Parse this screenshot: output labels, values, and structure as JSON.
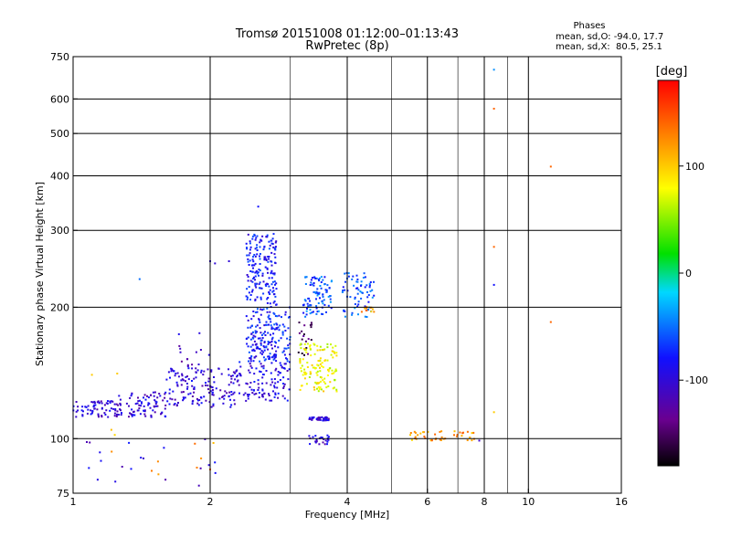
{
  "chart_data": {
    "type": "scatter",
    "title": "Tromsø 20151008 01:12:00–01:13:43",
    "subtitle": "RwPretec (8p)",
    "xlabel": "Frequency [MHz]",
    "ylabel": "Stationary phase Virtual Height [km]",
    "x_scale": "log",
    "y_scale": "log",
    "xlim": [
      1,
      16
    ],
    "ylim": [
      75,
      750
    ],
    "x_ticks": [
      1,
      2,
      4,
      6,
      8,
      10,
      16
    ],
    "y_ticks": [
      75,
      100,
      200,
      300,
      400,
      500,
      600,
      750
    ],
    "grid": true,
    "annotation": {
      "heading": "Phases",
      "line1": "mean, sd,O: -94.0, 17.7",
      "line2": "mean, sd,X:  80.5, 25.1"
    },
    "colorbar": {
      "label": "[deg]",
      "range": [
        -180,
        180
      ],
      "ticks": [
        100,
        0,
        -100
      ],
      "colors": [
        "#000000",
        "#6a0090",
        "#1010ff",
        "#00d8ff",
        "#00e000",
        "#ffff00",
        "#ff8000",
        "#ff0000"
      ]
    },
    "clusters": [
      {
        "fmin": 1.0,
        "fmax": 1.25,
        "hmin": 112,
        "hmax": 122,
        "phase": -100,
        "n": 70
      },
      {
        "fmin": 1.25,
        "fmax": 1.6,
        "hmin": 112,
        "hmax": 128,
        "phase": -100,
        "n": 90
      },
      {
        "fmin": 1.6,
        "fmax": 2.3,
        "hmin": 118,
        "hmax": 145,
        "phase": -100,
        "n": 140
      },
      {
        "fmin": 1.7,
        "fmax": 2.0,
        "hmin": 130,
        "hmax": 175,
        "phase": -110,
        "n": 25
      },
      {
        "fmin": 2.3,
        "fmax": 3.0,
        "hmin": 122,
        "hmax": 150,
        "phase": -95,
        "n": 110
      },
      {
        "fmin": 2.4,
        "fmax": 2.8,
        "hmin": 150,
        "hmax": 295,
        "phase": -80,
        "n": 320
      },
      {
        "fmin": 2.75,
        "fmax": 3.0,
        "hmin": 150,
        "hmax": 200,
        "phase": -75,
        "n": 50
      },
      {
        "fmin": 3.1,
        "fmax": 3.35,
        "hmin": 155,
        "hmax": 185,
        "phase": -150,
        "n": 20
      },
      {
        "fmin": 3.15,
        "fmax": 3.8,
        "hmin": 128,
        "hmax": 165,
        "phase": 80,
        "n": 130
      },
      {
        "fmin": 3.2,
        "fmax": 3.7,
        "hmin": 190,
        "hmax": 235,
        "phase": -60,
        "n": 95
      },
      {
        "fmin": 3.3,
        "fmax": 3.65,
        "hmin": 110,
        "hmax": 112,
        "phase": -100,
        "n": 40
      },
      {
        "fmin": 3.3,
        "fmax": 3.7,
        "hmin": 97,
        "hmax": 102,
        "phase": -100,
        "n": 25
      },
      {
        "fmin": 3.9,
        "fmax": 4.6,
        "hmin": 190,
        "hmax": 240,
        "phase": -60,
        "n": 70
      },
      {
        "fmin": 4.3,
        "fmax": 4.6,
        "hmin": 195,
        "hmax": 202,
        "phase": 120,
        "n": 12
      },
      {
        "fmin": 5.5,
        "fmax": 7.6,
        "hmin": 99,
        "hmax": 104,
        "phase": 120,
        "n": 45
      },
      {
        "fmin": 1.0,
        "fmax": 2.2,
        "hmin": 78,
        "hmax": 100,
        "phase": -100,
        "n": 20
      },
      {
        "fmin": 1.2,
        "fmax": 2.1,
        "hmin": 80,
        "hmax": 105,
        "phase": 120,
        "n": 10
      }
    ],
    "points": [
      {
        "x": 8.4,
        "y": 700,
        "phase": -40
      },
      {
        "x": 8.4,
        "y": 570,
        "phase": 140
      },
      {
        "x": 11.2,
        "y": 420,
        "phase": 140
      },
      {
        "x": 8.4,
        "y": 275,
        "phase": 140
      },
      {
        "x": 8.4,
        "y": 225,
        "phase": -80
      },
      {
        "x": 11.2,
        "y": 185,
        "phase": 140
      },
      {
        "x": 8.4,
        "y": 115,
        "phase": 100
      },
      {
        "x": 2.55,
        "y": 340,
        "phase": -80
      },
      {
        "x": 1.4,
        "y": 232,
        "phase": -50
      },
      {
        "x": 2.0,
        "y": 255,
        "phase": -100
      },
      {
        "x": 2.2,
        "y": 255,
        "phase": -100
      },
      {
        "x": 2.05,
        "y": 252,
        "phase": -100
      },
      {
        "x": 1.1,
        "y": 140,
        "phase": 100
      },
      {
        "x": 1.25,
        "y": 141,
        "phase": 100
      },
      {
        "x": 2.0,
        "y": 85,
        "phase": 140
      },
      {
        "x": 7.8,
        "y": 99,
        "phase": -110
      }
    ]
  }
}
